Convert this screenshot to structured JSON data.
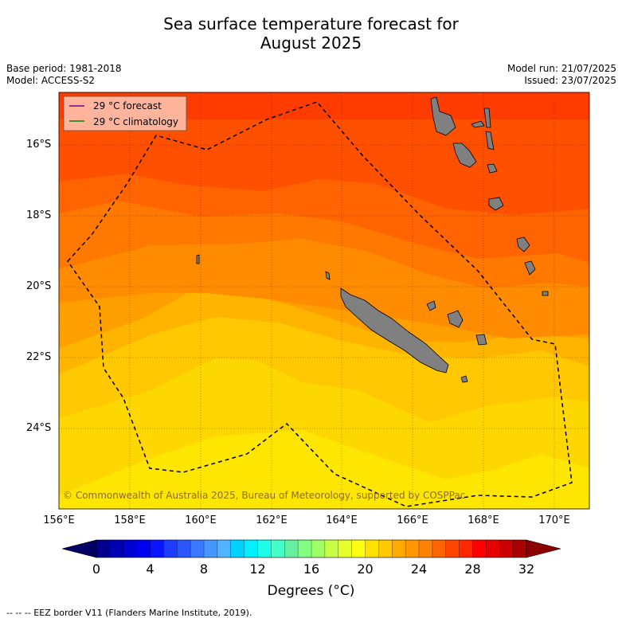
{
  "title_line1": "Sea surface temperature forecast for",
  "title_line2": "August 2025",
  "base_period": "Base period: 1981-2018",
  "model": "Model: ACCESS-S2",
  "model_run": "Model run: 21/07/2025",
  "issued": "Issued: 23/07/2025",
  "legend": {
    "forecast_label": "29 °C  forecast",
    "climatology_label": "29 °C  climatology",
    "forecast_color": "#800080",
    "climatology_color": "#008000"
  },
  "lat_labels": [
    "16°S",
    "18°S",
    "20°S",
    "22°S",
    "24°S"
  ],
  "lon_labels": [
    "156°E",
    "158°E",
    "160°E",
    "162°E",
    "164°E",
    "166°E",
    "168°E",
    "170°E"
  ],
  "copyright": "© Commonwealth of Australia 2025, Bureau of Meteorology, supported by COSPPac",
  "colorbar": {
    "ticks": [
      "0",
      "4",
      "8",
      "12",
      "16",
      "20",
      "24",
      "28",
      "32"
    ],
    "title": "Degrees (°C)",
    "colors": [
      "#00008c",
      "#0000b4",
      "#0000d2",
      "#0000f0",
      "#0a14ff",
      "#1e3cff",
      "#2a55ff",
      "#3c78ff",
      "#4696ff",
      "#50b4ff",
      "#00d2ff",
      "#00f0ff",
      "#1effe6",
      "#46ffc8",
      "#64f0a0",
      "#82ff82",
      "#a0ff64",
      "#c8ff46",
      "#e6ff28",
      "#ffff14",
      "#ffe100",
      "#ffc800",
      "#ffaa00",
      "#ff9600",
      "#ff8200",
      "#ff6400",
      "#ff4600",
      "#ff2800",
      "#ff0000",
      "#e60000",
      "#c80000",
      "#aa0000"
    ],
    "under_color": "#000064",
    "over_color": "#8c0000"
  },
  "footer": "--  --  -- EEZ border V11 (Flanders Marine Institute, 2019).",
  "map": {
    "band_colors": [
      "#ff3c00",
      "#ff5000",
      "#ff6400",
      "#ff7800",
      "#ff8c00",
      "#ffa000",
      "#ffb400",
      "#ffc800",
      "#ffd700",
      "#ffe600"
    ],
    "land_color": "#808080",
    "eez_color": "#000000"
  }
}
